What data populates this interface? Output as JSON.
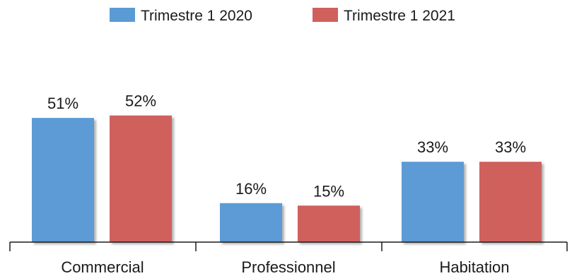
{
  "chart_data": {
    "type": "bar",
    "title": "",
    "xlabel": "",
    "ylabel": "",
    "categories": [
      "Commercial",
      "Professionnel",
      "Habitation"
    ],
    "series": [
      {
        "name": "Trimestre 1 2020",
        "values": [
          51,
          16,
          33
        ],
        "labels": [
          "51%",
          "16%",
          "33%"
        ],
        "color": "#5b9bd5"
      },
      {
        "name": "Trimestre 1 2021",
        "values": [
          52,
          15,
          33
        ],
        "labels": [
          "52%",
          "15%",
          "33%"
        ],
        "color": "#d0605c"
      }
    ],
    "ylim": [
      0,
      60
    ],
    "unit": "%",
    "grid": false,
    "legend_position": "top-center"
  }
}
